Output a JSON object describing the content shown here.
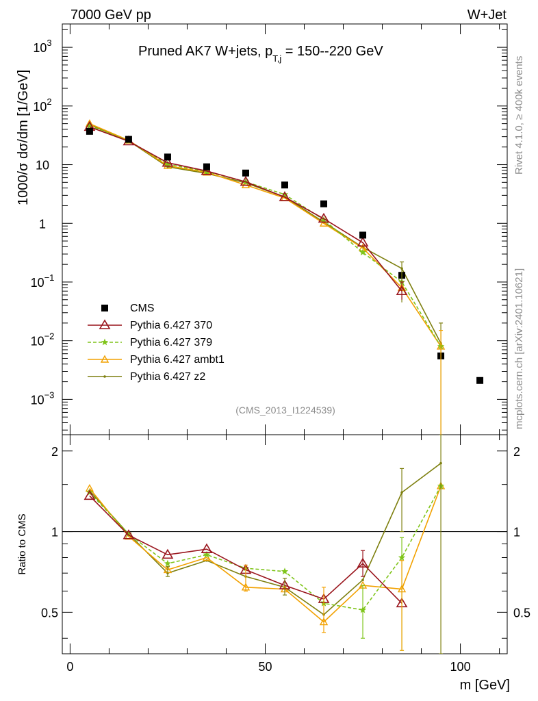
{
  "header": {
    "left": "7000 GeV pp",
    "right": "W+Jet"
  },
  "side_texts": {
    "rivet": "Rivet 4.1.0, ≥ 400k events",
    "mcplots": "mcplots.cern.ch [arXiv:2401.10621]"
  },
  "watermark": "(CMS_2013_I1224539)",
  "colors": {
    "cms": "#000000",
    "p370": "#99141c",
    "p379": "#7fc41a",
    "ambt1": "#f2a100",
    "z2": "#7d7f0e"
  },
  "chart_data": [
    {
      "type": "line",
      "scale": "log",
      "title": "Pruned AK7 W+jets, p_T,j = 150--220 GeV",
      "title_main": "Pruned AK7 W+jets, p",
      "title_sub": "T,j",
      "title_tail": " = 150--220 GeV",
      "ylabel_a": "1000/σ  dσ/dm [1/GeV]",
      "xlim": [
        -2,
        112
      ],
      "ylim": [
        0.00025,
        2500
      ],
      "yticks": [
        {
          "v": 1000,
          "base": "10",
          "exp": "3"
        },
        {
          "v": 100,
          "base": "10",
          "exp": "2"
        },
        {
          "v": 10,
          "base": "10",
          "exp": ""
        },
        {
          "v": 1,
          "base": "1",
          "exp": ""
        },
        {
          "v": 0.1,
          "base": "10",
          "exp": "−1"
        },
        {
          "v": 0.01,
          "base": "10",
          "exp": "−2"
        },
        {
          "v": 0.001,
          "base": "10",
          "exp": "−3"
        }
      ],
      "x": [
        5,
        15,
        25,
        35,
        45,
        55,
        65,
        75,
        85,
        95,
        105
      ],
      "series": [
        {
          "name": "CMS",
          "key": "cms",
          "style": "square",
          "values": [
            37,
            27,
            13.5,
            9.2,
            7.2,
            4.5,
            2.15,
            0.63,
            0.13,
            0.0055,
            0.0021
          ]
        },
        {
          "name": "Pythia 6.427 370",
          "key": "p370",
          "style": "triangle",
          "values": [
            44,
            25,
            10.8,
            7.8,
            5.1,
            2.8,
            1.2,
            0.47,
            0.07,
            null,
            null
          ]
        },
        {
          "name": "Pythia 6.427 379",
          "key": "p379",
          "style": "star",
          "values": [
            46,
            25.5,
            10.2,
            7.6,
            5.1,
            3.1,
            1.15,
            0.32,
            0.1,
            0.008,
            null
          ]
        },
        {
          "name": "Pythia 6.427 ambt1",
          "key": "ambt1",
          "style": "otriangle",
          "values": [
            50,
            26,
            9.6,
            7.4,
            4.5,
            2.7,
            1.0,
            0.38,
            0.08,
            0.008,
            null
          ]
        },
        {
          "name": "Pythia 6.427 z2",
          "key": "z2",
          "style": "dot",
          "values": [
            48,
            25.5,
            9.2,
            7.1,
            4.9,
            2.8,
            1.05,
            0.39,
            0.17,
            0.009,
            null
          ]
        }
      ],
      "legend": {
        "position": "middle-left"
      }
    },
    {
      "type": "line",
      "title": "",
      "ylabel": "Ratio to CMS",
      "xlabel": "m [GeV]",
      "xlim": [
        -2,
        112
      ],
      "ylim": [
        0.35,
        2.3
      ],
      "yticks": [
        "0.5",
        "1",
        "2"
      ],
      "ytick_values": [
        0.5,
        1,
        2
      ],
      "xticks": [
        "0",
        "50",
        "100"
      ],
      "xtick_values": [
        0,
        50,
        100
      ],
      "x": [
        5,
        15,
        25,
        35,
        45,
        55,
        65,
        75,
        85,
        95
      ],
      "series": [
        {
          "name": "Pythia 6.427 370",
          "key": "p370",
          "style": "triangle",
          "values": [
            1.36,
            0.97,
            0.82,
            0.86,
            0.72,
            0.63,
            0.56,
            0.76,
            0.54,
            null
          ]
        },
        {
          "name": "Pythia 6.427 379",
          "key": "p379",
          "style": "star",
          "values": [
            1.4,
            0.98,
            0.76,
            0.82,
            0.73,
            0.71,
            0.54,
            0.51,
            0.8,
            1.48
          ]
        },
        {
          "name": "Pythia 6.427 ambt1",
          "key": "ambt1",
          "style": "otriangle",
          "values": [
            1.45,
            0.96,
            0.72,
            0.8,
            0.62,
            0.61,
            0.46,
            0.63,
            0.61,
            1.48
          ]
        },
        {
          "name": "Pythia 6.427 z2",
          "key": "z2",
          "style": "dot",
          "values": [
            1.42,
            0.98,
            0.7,
            0.78,
            0.68,
            0.62,
            0.49,
            0.66,
            1.4,
            1.8
          ]
        }
      ],
      "reference": 1
    }
  ]
}
